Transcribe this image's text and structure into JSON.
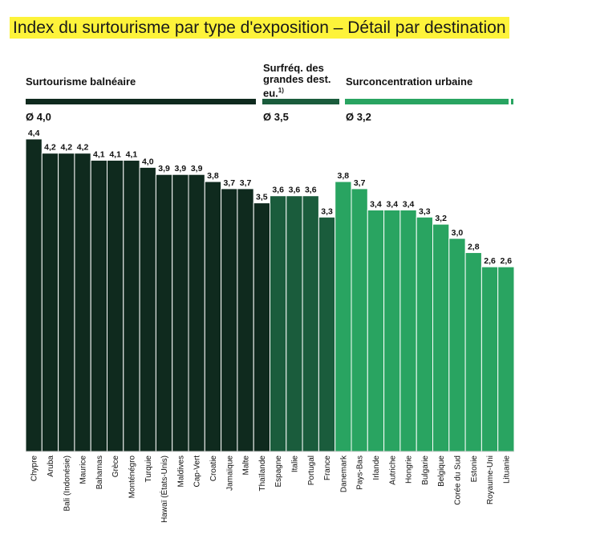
{
  "title": "Index du surtourisme par type d'exposition – Détail par destination",
  "groups": [
    {
      "label": "Surtourisme balnéaire",
      "average": "Ø 4,0",
      "color": "#0f2a1e"
    },
    {
      "label": "Surfréq. des grandes dest. eu.",
      "footnote": "1)",
      "average": "Ø 3,5",
      "color": "#1a5c3c"
    },
    {
      "label": "Surconcentration urbaine",
      "average": "Ø 3,2",
      "color": "#29a461"
    }
  ],
  "colors": {
    "highlight": "#fdf33a",
    "bar_outline": "#ffffff"
  },
  "chart_data": {
    "type": "bar",
    "categories": [
      "Chypre",
      "Aruba",
      "Bali (Indonésie)",
      "Maurice",
      "Bahamas",
      "Grèce",
      "Monténégro",
      "Turquie",
      "Hawaï (États-Unis)",
      "Maldives",
      "Cap-Vert",
      "Croatie",
      "Jamaïque",
      "Malte",
      "Thaïlande",
      "Espagne",
      "Italie",
      "Portugal",
      "France",
      "Danemark",
      "Pays-Bas",
      "Irlande",
      "Autriche",
      "Hongrie",
      "Bulgarie",
      "Belgique",
      "Corée du Sud",
      "Estonie",
      "Royaume-Uni",
      "Lituanie"
    ],
    "values": [
      4.4,
      4.2,
      4.2,
      4.2,
      4.1,
      4.1,
      4.1,
      4.0,
      3.9,
      3.9,
      3.9,
      3.8,
      3.7,
      3.7,
      3.5,
      3.6,
      3.6,
      3.6,
      3.3,
      3.8,
      3.7,
      3.4,
      3.4,
      3.4,
      3.3,
      3.2,
      3.0,
      2.8,
      2.6,
      2.6
    ],
    "value_labels": [
      "4,4",
      "4,2",
      "4,2",
      "4,2",
      "4,1",
      "4,1",
      "4,1",
      "4,0",
      "3,9",
      "3,9",
      "3,9",
      "3,8",
      "3,7",
      "3,7",
      "3,5",
      "3,6",
      "3,6",
      "3,6",
      "3,3",
      "3,8",
      "3,7",
      "3,4",
      "3,4",
      "3,4",
      "3,3",
      "3,2",
      "3,0",
      "2,8",
      "2,6",
      "2,6"
    ],
    "bar_colors": [
      "#0f2a1e",
      "#0f2a1e",
      "#0f2a1e",
      "#0f2a1e",
      "#0f2a1e",
      "#0f2a1e",
      "#0f2a1e",
      "#0f2a1e",
      "#0f2a1e",
      "#0f2a1e",
      "#0f2a1e",
      "#0f2a1e",
      "#0f2a1e",
      "#0f2a1e",
      "#0f2a1e",
      "#1a5c3c",
      "#1a5c3c",
      "#1a5c3c",
      "#1a5c3c",
      "#29a461",
      "#29a461",
      "#29a461",
      "#29a461",
      "#29a461",
      "#29a461",
      "#29a461",
      "#29a461",
      "#29a461",
      "#29a461",
      "#29a461"
    ],
    "ylim": [
      0,
      4.4
    ],
    "grid": false,
    "legend": "top",
    "xlabel": "",
    "ylabel": ""
  }
}
